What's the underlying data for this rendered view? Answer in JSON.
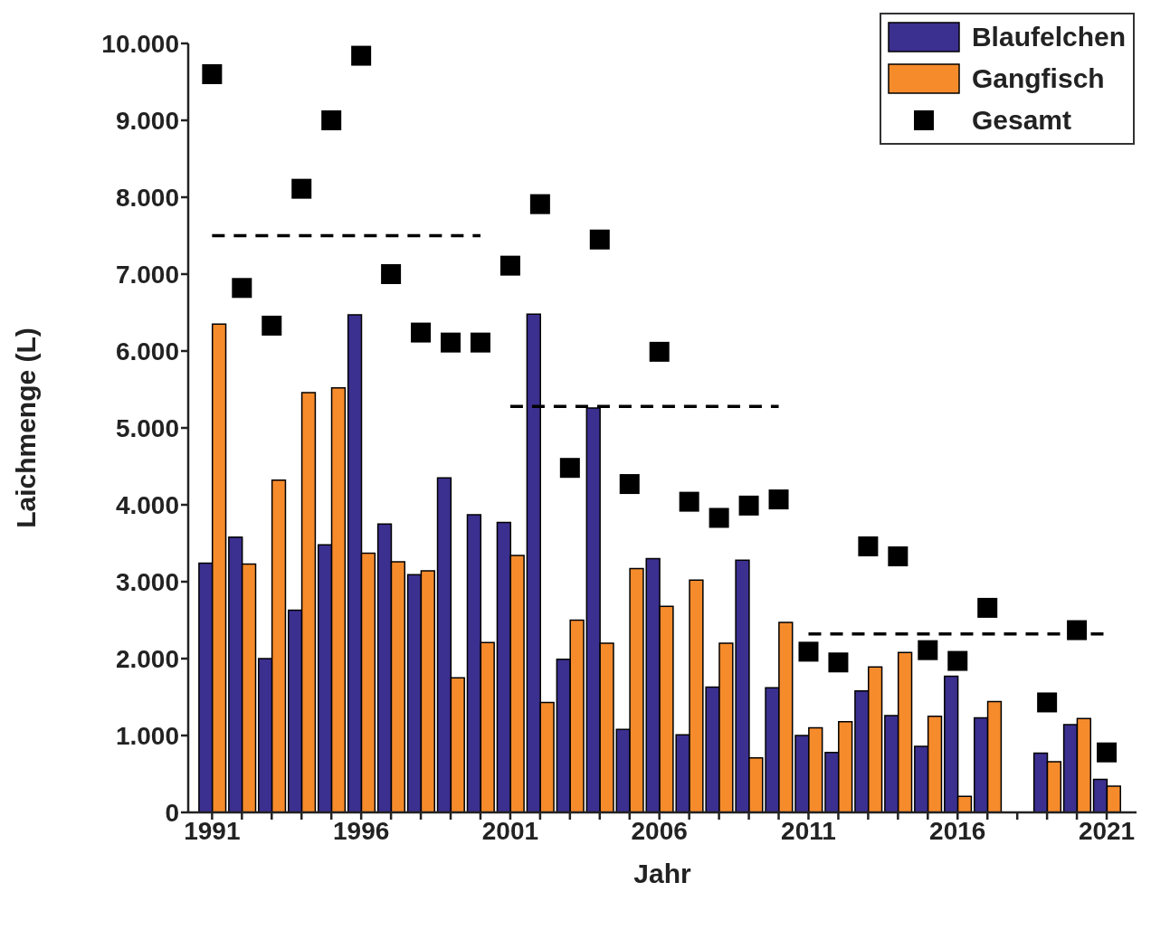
{
  "chart_data": {
    "type": "bar",
    "xlabel": "Jahr",
    "ylabel": "Laichmenge (L)",
    "x": [
      1991,
      1992,
      1993,
      1994,
      1995,
      1996,
      1997,
      1998,
      1999,
      2000,
      2001,
      2002,
      2003,
      2004,
      2005,
      2006,
      2007,
      2008,
      2009,
      2010,
      2011,
      2012,
      2013,
      2014,
      2015,
      2016,
      2017,
      2018,
      2019,
      2020,
      2021
    ],
    "series": [
      {
        "name": "Blaufelchen",
        "color": "#3b2f8f",
        "values": [
          3240,
          3580,
          2000,
          2630,
          3480,
          6470,
          3750,
          3090,
          4350,
          3870,
          3770,
          6480,
          1990,
          5260,
          1080,
          3300,
          1010,
          1630,
          3280,
          1620,
          1000,
          780,
          1580,
          1260,
          860,
          1770,
          1230,
          null,
          770,
          1140,
          430
        ]
      },
      {
        "name": "Gangfisch",
        "color": "#f68b2c",
        "values": [
          6350,
          3230,
          4320,
          5460,
          5520,
          3370,
          3260,
          3140,
          1750,
          2210,
          3340,
          1430,
          2500,
          2200,
          3170,
          2680,
          3020,
          2200,
          710,
          2470,
          1100,
          1180,
          1890,
          2080,
          1250,
          210,
          1440,
          null,
          660,
          1220,
          340
        ]
      },
      {
        "name": "Gesamt",
        "type": "scatter",
        "color": "#000000",
        "marker": "square",
        "values": [
          9600,
          6820,
          6330,
          8110,
          9000,
          9840,
          7000,
          6240,
          6110,
          6110,
          7110,
          7910,
          4480,
          7450,
          4270,
          5990,
          4040,
          3830,
          3990,
          4070,
          2090,
          1950,
          3460,
          3330,
          2110,
          1970,
          2660,
          null,
          1430,
          2370,
          780
        ]
      },
      {
        "type": "line",
        "color": "#000000",
        "line_style": "dashed",
        "marker": "none",
        "x": [
          1991,
          2000
        ],
        "values": [
          7500,
          7500
        ]
      },
      {
        "type": "line",
        "color": "#000000",
        "line_style": "dashed",
        "marker": "none",
        "x": [
          2001,
          2010
        ],
        "values": [
          5280,
          5280
        ]
      },
      {
        "type": "line",
        "color": "#000000",
        "line_style": "dashed",
        "marker": "none",
        "x": [
          2011,
          2021
        ],
        "values": [
          2320,
          2320
        ]
      }
    ],
    "xlim": [
      1990.2,
      2022
    ],
    "xticks": [
      1991,
      {
        "value": 1992,
        "label": null
      },
      {
        "value": 1993,
        "label": null
      },
      {
        "value": 1994,
        "label": null
      },
      {
        "value": 1995,
        "label": null
      },
      1996,
      {
        "value": 1997,
        "label": null
      },
      {
        "value": 1998,
        "label": null
      },
      {
        "value": 1999,
        "label": null
      },
      {
        "value": 2000,
        "label": null
      },
      2001,
      {
        "value": 2002,
        "label": null
      },
      {
        "value": 2003,
        "label": null
      },
      {
        "value": 2004,
        "label": null
      },
      {
        "value": 2005,
        "label": null
      },
      2006,
      {
        "value": 2007,
        "label": null
      },
      {
        "value": 2008,
        "label": null
      },
      {
        "value": 2009,
        "label": null
      },
      {
        "value": 2010,
        "label": null
      },
      2011,
      {
        "value": 2012,
        "label": null
      },
      {
        "value": 2013,
        "label": null
      },
      {
        "value": 2014,
        "label": null
      },
      {
        "value": 2015,
        "label": null
      },
      2016,
      {
        "value": 2017,
        "label": null
      },
      {
        "value": 2018,
        "label": null
      },
      {
        "value": 2019,
        "label": null
      },
      {
        "value": 2020,
        "label": null
      },
      2021
    ],
    "ylim": [
      0,
      10000
    ],
    "yticks": [
      0,
      {
        "value": 1000,
        "label": "1.000"
      },
      {
        "value": 2000,
        "label": "2.000"
      },
      {
        "value": 3000,
        "label": "3.000"
      },
      {
        "value": 4000,
        "label": "4.000"
      },
      {
        "value": 5000,
        "label": "5.000"
      },
      {
        "value": 6000,
        "label": "6.000"
      },
      {
        "value": 7000,
        "label": "7.000"
      },
      {
        "value": 8000,
        "label": "8.000"
      },
      {
        "value": 9000,
        "label": "9.000"
      },
      {
        "value": 10000,
        "label": "10.000"
      }
    ],
    "grid": false,
    "legend": "top right"
  }
}
